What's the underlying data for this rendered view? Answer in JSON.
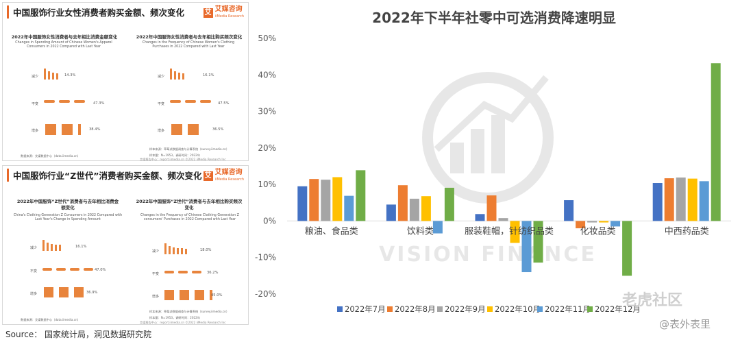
{
  "left_top": {
    "title": "中国服饰行业女性消费者购买金额、频次变化",
    "logo_text": "艾媒咨询",
    "logo_sub": "iiMedia Research",
    "logo_glyph": "艾",
    "left_sub_title": "2022年中国服饰女性消费者与去年相比消费金额变化",
    "left_sub_en": "Changes in Spending Amount of Chinese Women's Apparel Consumers in 2022 Compared with Last Year",
    "right_sub_title": "2022年中国服饰女性消费者与去年相比购买频次变化",
    "right_sub_en": "Changes in the Frequency of Chinese Women's Clothing Purchases in 2022 Compared with Last Year",
    "rows": [
      "减少",
      "不变",
      "增多"
    ],
    "left_pcts": [
      "14.3%",
      "47.3%",
      "38.4%"
    ],
    "right_pcts": [
      "16.1%",
      "47.5%",
      "36.5%"
    ],
    "data_note": "数据来源：艾媒数据中心（data.iimedia.cn）",
    "sample_note1": "样本来源：草莓派数据调查与计算系统（survey.iimedia.cn）",
    "sample_note2": "样本量：N=1953，调研时间：2022年",
    "footer": "艾媒报告中心：report.iimedia.cn   ©2022   iiMedia Research Inc"
  },
  "left_bottom": {
    "title": "中国服饰行业“Z世代”消费者购买金额、频次变化",
    "logo_text": "艾媒咨询",
    "logo_sub": "iiMedia Research",
    "logo_glyph": "艾",
    "left_sub_title": "2022年中国服饰“Z世代”消费者与去年相比消费金额变化",
    "left_sub_en": "China's Clothing Generation Z Consumers in 2022 Compared with Last Year's Change in Spending Amount",
    "right_sub_title": "2022年中国服饰“Z世代”消费者与去年相比购买频次变化",
    "right_sub_en": "Changes in the Frequency of Chinese Clothing Generation Z consumers' Purchases in 2022 Compared with Last Year",
    "rows": [
      "减少",
      "不变",
      "增多"
    ],
    "left_pcts": [
      "16.1%",
      "47.0%",
      "36.9%"
    ],
    "right_pcts": [
      "18.0%",
      "36.2%",
      "45.0%"
    ],
    "data_note": "数据来源：艾媒数据中心（data.iimedia.cn）",
    "sample_note1": "样本来源：草莓派数据调查与计算系统（survey.iimedia.cn）",
    "sample_note2": "样本量：N=1953，调研时间：2022年",
    "footer": "艾媒报告中心：report.iimedia.cn   ©2022   iiMedia Research Inc"
  },
  "source": "Source：  国家统计局，洞见数据研究院",
  "watermark_center": "VISION FINANCE",
  "watermark_laohu": "老虎社区",
  "watermark_biaowai": "@表外表里",
  "colors": {
    "accent": "#e8843c",
    "series": [
      "#4472c4",
      "#ed7d31",
      "#a5a5a5",
      "#ffc000",
      "#5b9bd5",
      "#70ad47"
    ]
  },
  "chart_data": {
    "type": "bar",
    "title": "2022年下半年社零中可选消费降速明显",
    "categories": [
      "粮油、食品类",
      "饮料类",
      "服装鞋帽，针纺织品类",
      "化妆品类",
      "中西药品类"
    ],
    "series": [
      {
        "name": "2022年7月",
        "values": [
          9.5,
          4.5,
          1.9,
          5.7,
          10.4
        ]
      },
      {
        "name": "2022年8月",
        "values": [
          11.5,
          9.8,
          7.0,
          -2.0,
          11.7
        ]
      },
      {
        "name": "2022年9月",
        "values": [
          11.3,
          6.1,
          0.8,
          -0.4,
          11.9
        ]
      },
      {
        "name": "2022年10月",
        "values": [
          12.0,
          6.8,
          -6.0,
          -0.4,
          11.6
        ]
      },
      {
        "name": "2022年11月",
        "values": [
          6.9,
          -3.4,
          -14.0,
          -1.5,
          10.9
        ]
      },
      {
        "name": "2022年12月",
        "values": [
          13.9,
          9.1,
          -11.4,
          -15.0,
          43.2
        ]
      }
    ],
    "ylim": [
      -20,
      50
    ],
    "yticks": [
      "50%",
      "40%",
      "30%",
      "20%",
      "10%",
      "0%",
      "-10%",
      "-20%"
    ],
    "grid": false,
    "legend_position": "bottom"
  }
}
